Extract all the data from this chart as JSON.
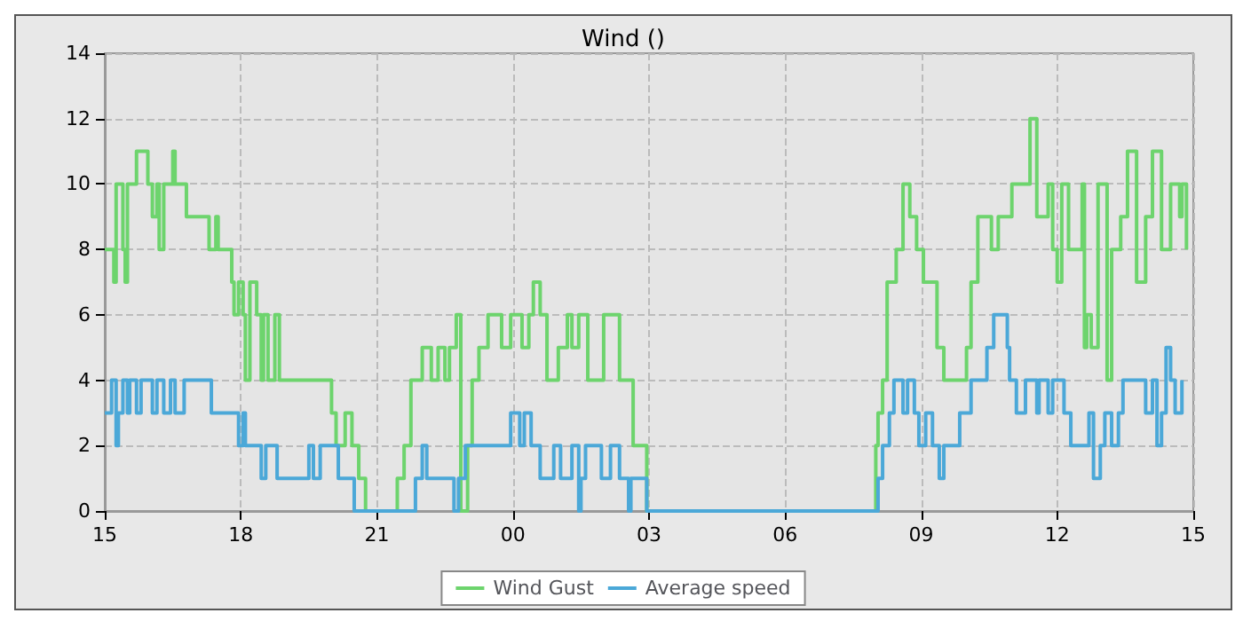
{
  "chart_data": {
    "type": "step",
    "title": "Wind ()",
    "xlim": [
      15,
      39
    ],
    "xticks": [
      {
        "value": 15,
        "label": "15"
      },
      {
        "value": 18,
        "label": "18"
      },
      {
        "value": 21,
        "label": "21"
      },
      {
        "value": 24,
        "label": "00"
      },
      {
        "value": 27,
        "label": "03"
      },
      {
        "value": 30,
        "label": "06"
      },
      {
        "value": 33,
        "label": "09"
      },
      {
        "value": 36,
        "label": "12"
      },
      {
        "value": 39,
        "label": "15"
      }
    ],
    "ylim": [
      0,
      14
    ],
    "yticks": [
      0,
      2,
      4,
      6,
      8,
      10,
      12,
      14
    ],
    "grid": true,
    "legend": "bottom",
    "marker": "none",
    "line_style": "solid",
    "series": [
      {
        "name": "Wind Gust",
        "color": "#6dd46d",
        "x": [
          15.0,
          15.2,
          15.25,
          15.4,
          15.45,
          15.5,
          15.7,
          15.95,
          16.05,
          16.15,
          16.2,
          16.3,
          16.5,
          16.55,
          16.8,
          17.3,
          17.45,
          17.5,
          17.8,
          17.85,
          17.95,
          18.05,
          18.1,
          18.2,
          18.35,
          18.45,
          18.5,
          18.6,
          18.75,
          18.85,
          20.0,
          20.1,
          20.3,
          20.45,
          20.6,
          20.75,
          21.45,
          21.6,
          21.75,
          22.0,
          22.2,
          22.35,
          22.5,
          22.6,
          22.75,
          22.85,
          23.0,
          23.1,
          23.25,
          23.45,
          23.75,
          23.95,
          24.2,
          24.35,
          24.45,
          24.6,
          24.75,
          25.0,
          25.2,
          25.3,
          25.45,
          25.65,
          26.0,
          26.35,
          26.65,
          26.95,
          31.95,
          32.0,
          32.05,
          32.15,
          32.25,
          32.45,
          32.6,
          32.75,
          32.9,
          33.05,
          33.35,
          33.5,
          34.0,
          34.1,
          34.25,
          34.55,
          34.7,
          35.0,
          35.4,
          35.55,
          35.8,
          35.9,
          36.0,
          36.1,
          36.25,
          36.55,
          36.6,
          36.65,
          36.75,
          36.9,
          37.1,
          37.2,
          37.4,
          37.55,
          37.75,
          37.95,
          38.1,
          38.3,
          38.5,
          38.7,
          38.75,
          38.85
        ],
        "values": [
          8,
          7,
          10,
          8,
          7,
          10,
          11,
          10,
          9,
          10,
          8,
          10,
          11,
          10,
          9,
          8,
          9,
          8,
          7,
          6,
          7,
          6,
          4,
          7,
          6,
          4,
          6,
          4,
          6,
          4,
          3,
          2,
          3,
          2,
          1,
          0,
          1,
          2,
          4,
          5,
          4,
          5,
          4,
          5,
          6,
          0,
          2,
          4,
          5,
          6,
          5,
          6,
          5,
          6,
          7,
          6,
          4,
          5,
          6,
          5,
          6,
          4,
          6,
          4,
          2,
          0,
          0,
          2,
          3,
          4,
          7,
          8,
          10,
          9,
          8,
          7,
          5,
          4,
          5,
          7,
          9,
          8,
          9,
          10,
          12,
          9,
          10,
          8,
          7,
          10,
          8,
          10,
          5,
          6,
          5,
          10,
          4,
          8,
          9,
          11,
          7,
          9,
          11,
          8,
          10,
          9,
          10,
          8
        ]
      },
      {
        "name": "Average speed",
        "color": "#4ba8d8",
        "x": [
          15.0,
          15.15,
          15.25,
          15.3,
          15.4,
          15.5,
          15.55,
          15.7,
          15.8,
          15.95,
          16.05,
          16.15,
          16.3,
          16.45,
          16.55,
          16.75,
          16.9,
          17.35,
          17.85,
          17.95,
          18.05,
          18.1,
          18.3,
          18.45,
          18.55,
          18.8,
          19.0,
          19.5,
          19.6,
          19.75,
          20.15,
          20.5,
          21.85,
          22.0,
          22.1,
          22.2,
          22.7,
          22.8,
          22.95,
          23.15,
          23.7,
          23.95,
          24.15,
          24.25,
          24.4,
          24.5,
          24.6,
          24.9,
          25.05,
          25.3,
          25.45,
          25.5,
          25.6,
          25.85,
          25.95,
          26.15,
          26.35,
          26.55,
          26.6,
          26.95,
          32.05,
          32.15,
          32.3,
          32.4,
          32.6,
          32.7,
          32.85,
          32.95,
          33.1,
          33.25,
          33.4,
          33.5,
          33.85,
          34.05,
          34.1,
          34.25,
          34.45,
          34.6,
          34.9,
          34.95,
          35.1,
          35.3,
          35.55,
          35.6,
          35.8,
          35.9,
          35.95,
          36.15,
          36.3,
          36.6,
          36.7,
          36.8,
          36.95,
          37.05,
          37.2,
          37.35,
          37.45,
          37.7,
          37.95,
          38.1,
          38.2,
          38.3,
          38.4,
          38.5,
          38.6,
          38.75
        ],
        "values": [
          3,
          4,
          2,
          3,
          4,
          3,
          4,
          3,
          4,
          4,
          3,
          4,
          3,
          4,
          3,
          4,
          4,
          3,
          3,
          2,
          3,
          2,
          2,
          1,
          2,
          1,
          1,
          2,
          1,
          2,
          1,
          0,
          1,
          2,
          1,
          1,
          0,
          1,
          2,
          2,
          2,
          3,
          2,
          3,
          2,
          2,
          1,
          2,
          1,
          2,
          0,
          1,
          2,
          2,
          1,
          2,
          1,
          0,
          1,
          0,
          1,
          2,
          3,
          4,
          3,
          4,
          3,
          2,
          3,
          2,
          1,
          2,
          3,
          3,
          4,
          4,
          5,
          6,
          5,
          4,
          3,
          4,
          3,
          4,
          3,
          4,
          4,
          3,
          2,
          2,
          3,
          1,
          2,
          3,
          2,
          3,
          4,
          4,
          3,
          4,
          2,
          3,
          5,
          4,
          3,
          4
        ]
      }
    ]
  }
}
